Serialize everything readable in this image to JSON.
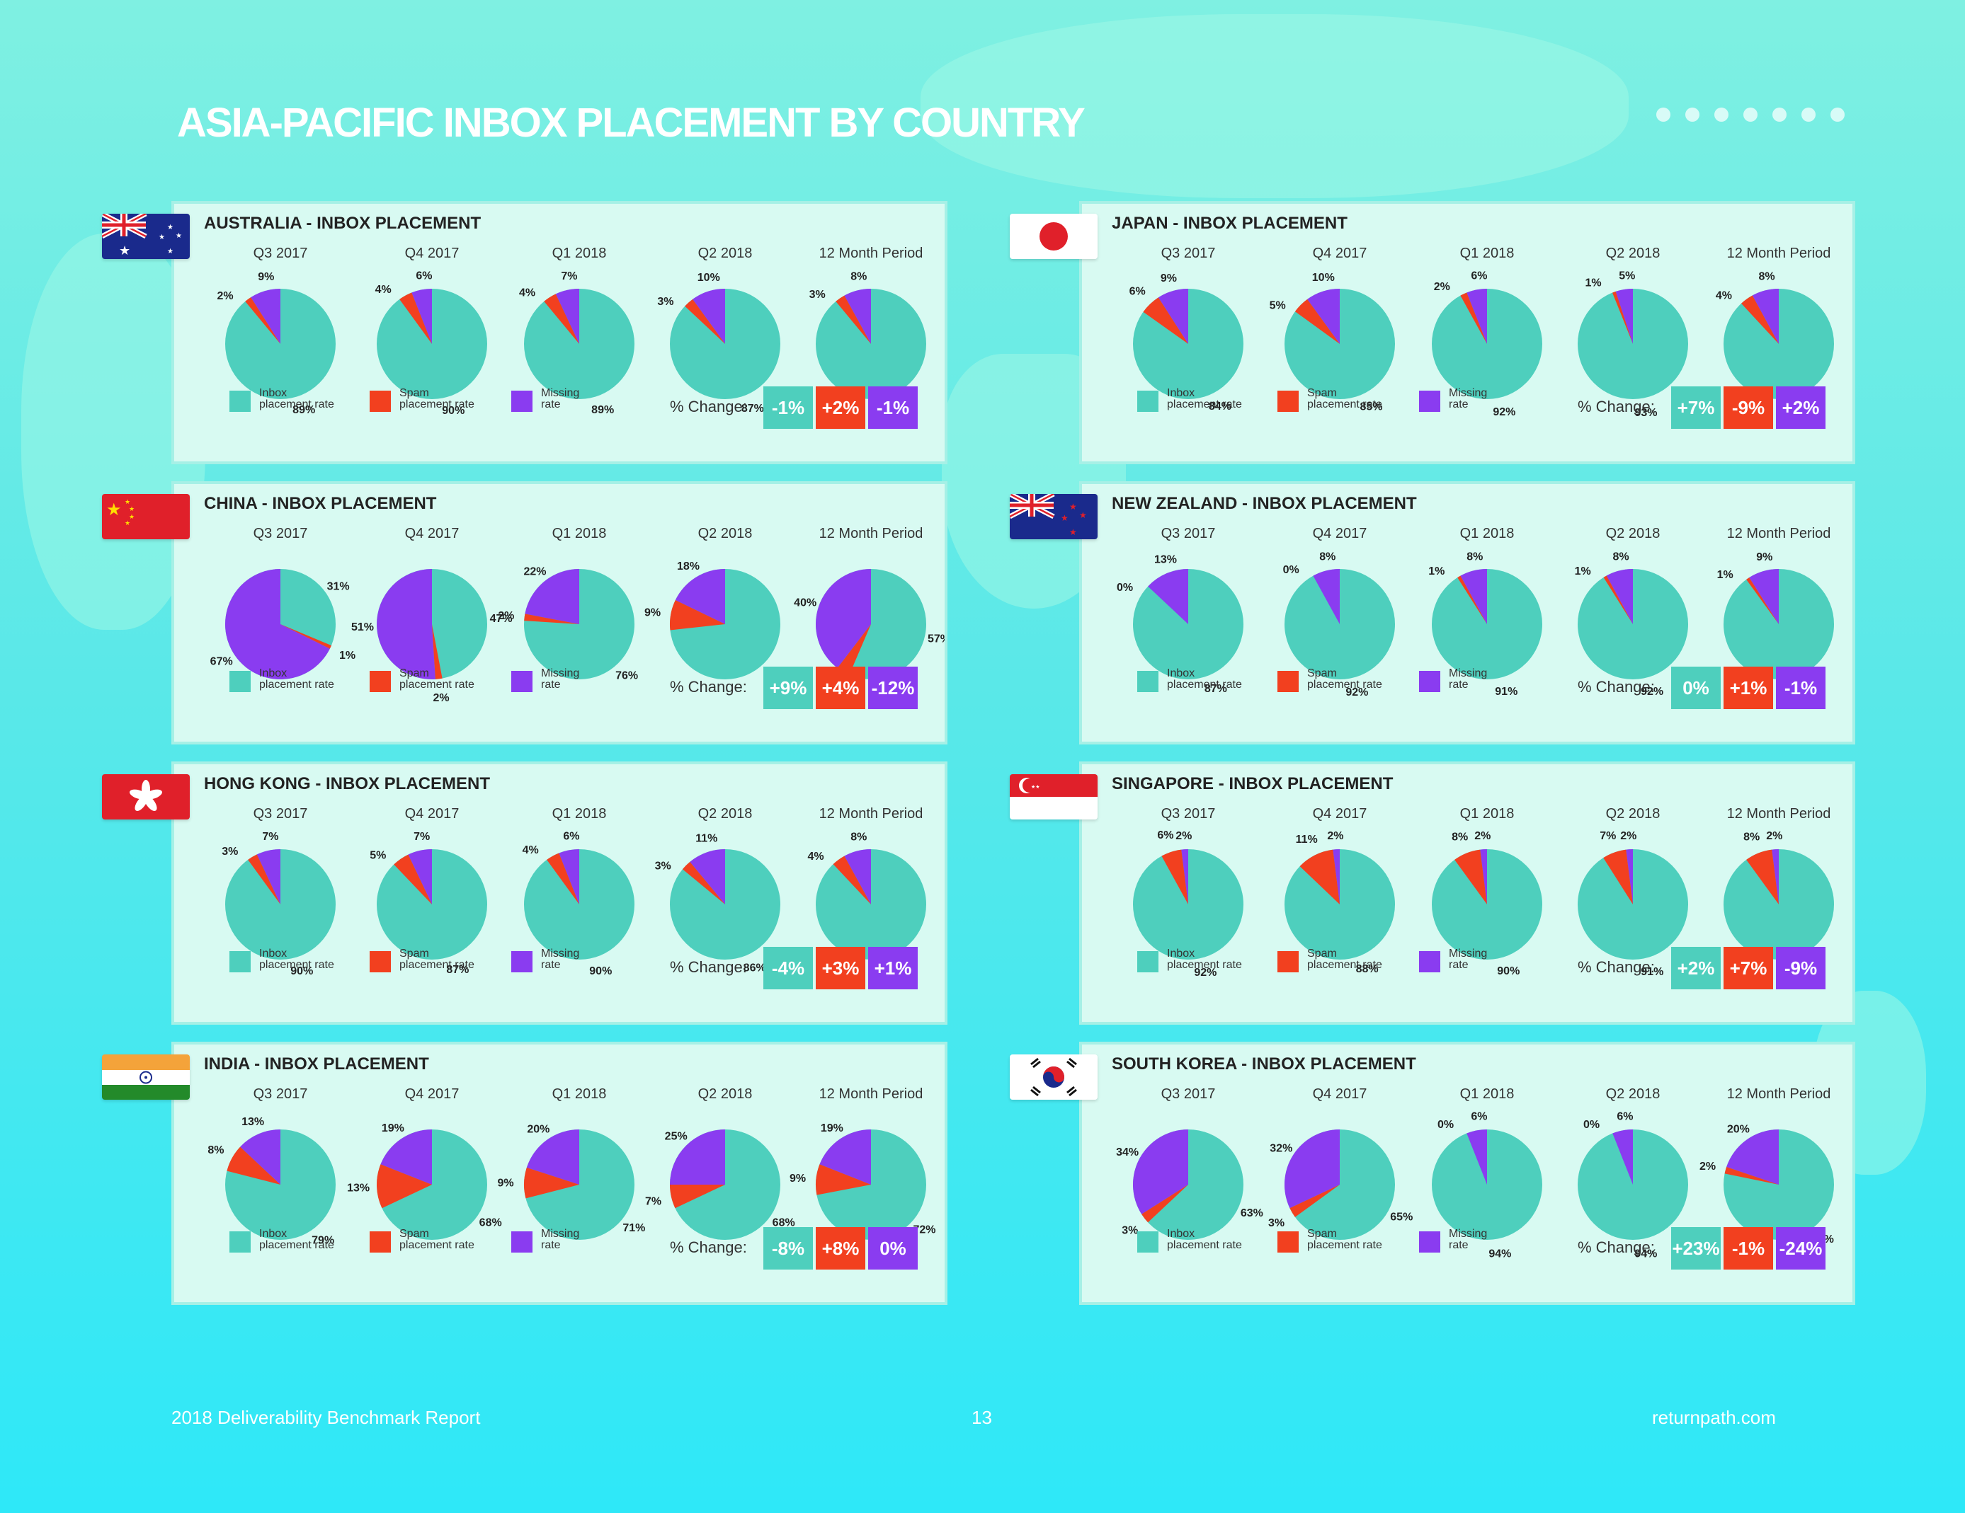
{
  "page": {
    "title": "ASIA-PACIFIC INBOX PLACEMENT BY COUNTRY",
    "footer_left": "2018 Deliverability Benchmark Report",
    "footer_page": "13",
    "footer_right": "returnpath.com"
  },
  "colors": {
    "inbox": "#4ecfbd",
    "spam": "#f2401f",
    "missing": "#8a3cf0",
    "panel": "#d8faf2"
  },
  "periods": [
    "Q3 2017",
    "Q4 2017",
    "Q1 2018",
    "Q2 2018",
    "12 Month Period"
  ],
  "legend": {
    "inbox": "Inbox\nplacement rate",
    "spam": "Spam\nplacement rate",
    "missing": "Missing\nrate"
  },
  "change_label": "% Change:",
  "panels": [
    {
      "title": "AUSTRALIA - INBOX PLACEMENT",
      "flag": "australia",
      "change": [
        "-1%",
        "+2%",
        "-1%"
      ]
    },
    {
      "title": "JAPAN - INBOX PLACEMENT",
      "flag": "japan",
      "change": [
        "+7%",
        "-9%",
        "+2%"
      ]
    },
    {
      "title": "CHINA - INBOX PLACEMENT",
      "flag": "china",
      "change": [
        "+9%",
        "+4%",
        "-12%"
      ]
    },
    {
      "title": "NEW ZEALAND - INBOX PLACEMENT",
      "flag": "new-zealand",
      "change": [
        "0%",
        "+1%",
        "-1%"
      ]
    },
    {
      "title": "HONG KONG - INBOX PLACEMENT",
      "flag": "hong-kong",
      "change": [
        "-4%",
        "+3%",
        "+1%"
      ]
    },
    {
      "title": "SINGAPORE - INBOX PLACEMENT",
      "flag": "singapore",
      "change": [
        "+2%",
        "+7%",
        "-9%"
      ]
    },
    {
      "title": "INDIA - INBOX PLACEMENT",
      "flag": "india",
      "change": [
        "-8%",
        "+8%",
        "0%"
      ]
    },
    {
      "title": "SOUTH KOREA - INBOX PLACEMENT",
      "flag": "south-korea",
      "change": [
        "+23%",
        "-1%",
        "-24%"
      ]
    }
  ],
  "chart_data": [
    {
      "type": "pie",
      "title": "AUSTRALIA - INBOX PLACEMENT",
      "categories": [
        "Q3 2017",
        "Q4 2017",
        "Q1 2018",
        "Q2 2018",
        "12 Month Period"
      ],
      "series": [
        {
          "name": "Inbox placement rate",
          "values": [
            89,
            90,
            89,
            87,
            89
          ]
        },
        {
          "name": "Spam placement rate",
          "values": [
            2,
            4,
            4,
            3,
            3
          ]
        },
        {
          "name": "Missing rate",
          "values": [
            9,
            6,
            7,
            10,
            8
          ]
        }
      ]
    },
    {
      "type": "pie",
      "title": "JAPAN - INBOX PLACEMENT",
      "categories": [
        "Q3 2017",
        "Q4 2017",
        "Q1 2018",
        "Q2 2018",
        "12 Month Period"
      ],
      "series": [
        {
          "name": "Inbox placement rate",
          "values": [
            84,
            85,
            92,
            93,
            89
          ]
        },
        {
          "name": "Spam placement rate",
          "values": [
            6,
            5,
            2,
            1,
            4
          ]
        },
        {
          "name": "Missing rate",
          "values": [
            9,
            10,
            6,
            5,
            8
          ]
        }
      ]
    },
    {
      "type": "pie",
      "title": "CHINA - INBOX PLACEMENT",
      "categories": [
        "Q3 2017",
        "Q4 2017",
        "Q1 2018",
        "Q2 2018",
        "12 Month Period"
      ],
      "series": [
        {
          "name": "Inbox placement rate",
          "values": [
            31,
            47,
            76,
            74,
            57
          ]
        },
        {
          "name": "Spam placement rate",
          "values": [
            1,
            2,
            2,
            9,
            4
          ]
        },
        {
          "name": "Missing rate",
          "values": [
            67,
            51,
            22,
            18,
            40
          ]
        }
      ]
    },
    {
      "type": "pie",
      "title": "NEW ZEALAND - INBOX PLACEMENT",
      "categories": [
        "Q3 2017",
        "Q4 2017",
        "Q1 2018",
        "Q2 2018",
        "12 Month Period"
      ],
      "series": [
        {
          "name": "Inbox placement rate",
          "values": [
            87,
            92,
            91,
            92,
            90
          ]
        },
        {
          "name": "Spam placement rate",
          "values": [
            0,
            0,
            1,
            1,
            1
          ]
        },
        {
          "name": "Missing rate",
          "values": [
            13,
            8,
            8,
            8,
            9
          ]
        }
      ]
    },
    {
      "type": "pie",
      "title": "HONG KONG - INBOX PLACEMENT",
      "categories": [
        "Q3 2017",
        "Q4 2017",
        "Q1 2018",
        "Q2 2018",
        "12 Month Period"
      ],
      "series": [
        {
          "name": "Inbox placement rate",
          "values": [
            90,
            87,
            90,
            86,
            88
          ]
        },
        {
          "name": "Spam placement rate",
          "values": [
            3,
            5,
            4,
            3,
            4
          ]
        },
        {
          "name": "Missing rate",
          "values": [
            7,
            7,
            6,
            11,
            8
          ]
        }
      ]
    },
    {
      "type": "pie",
      "title": "SINGAPORE - INBOX PLACEMENT",
      "categories": [
        "Q3 2017",
        "Q4 2017",
        "Q1 2018",
        "Q2 2018",
        "12 Month Period"
      ],
      "series": [
        {
          "name": "Inbox placement rate",
          "values": [
            92,
            88,
            90,
            91,
            90
          ]
        },
        {
          "name": "Spam placement rate",
          "values": [
            6,
            11,
            8,
            7,
            8
          ]
        },
        {
          "name": "Missing rate",
          "values": [
            2,
            2,
            2,
            2,
            2
          ]
        }
      ]
    },
    {
      "type": "pie",
      "title": "INDIA - INBOX PLACEMENT",
      "categories": [
        "Q3 2017",
        "Q4 2017",
        "Q1 2018",
        "Q2 2018",
        "12 Month Period"
      ],
      "series": [
        {
          "name": "Inbox placement rate",
          "values": [
            79,
            68,
            71,
            68,
            72
          ]
        },
        {
          "name": "Spam placement rate",
          "values": [
            8,
            13,
            9,
            7,
            9
          ]
        },
        {
          "name": "Missing rate",
          "values": [
            13,
            19,
            20,
            25,
            19
          ]
        }
      ]
    },
    {
      "type": "pie",
      "title": "SOUTH KOREA - INBOX PLACEMENT",
      "categories": [
        "Q3 2017",
        "Q4 2017",
        "Q1 2018",
        "Q2 2018",
        "12 Month Period"
      ],
      "series": [
        {
          "name": "Inbox placement rate",
          "values": [
            63,
            65,
            94,
            94,
            79
          ]
        },
        {
          "name": "Spam placement rate",
          "values": [
            3,
            3,
            0,
            0,
            2
          ]
        },
        {
          "name": "Missing rate",
          "values": [
            34,
            32,
            6,
            6,
            20
          ]
        }
      ]
    }
  ]
}
